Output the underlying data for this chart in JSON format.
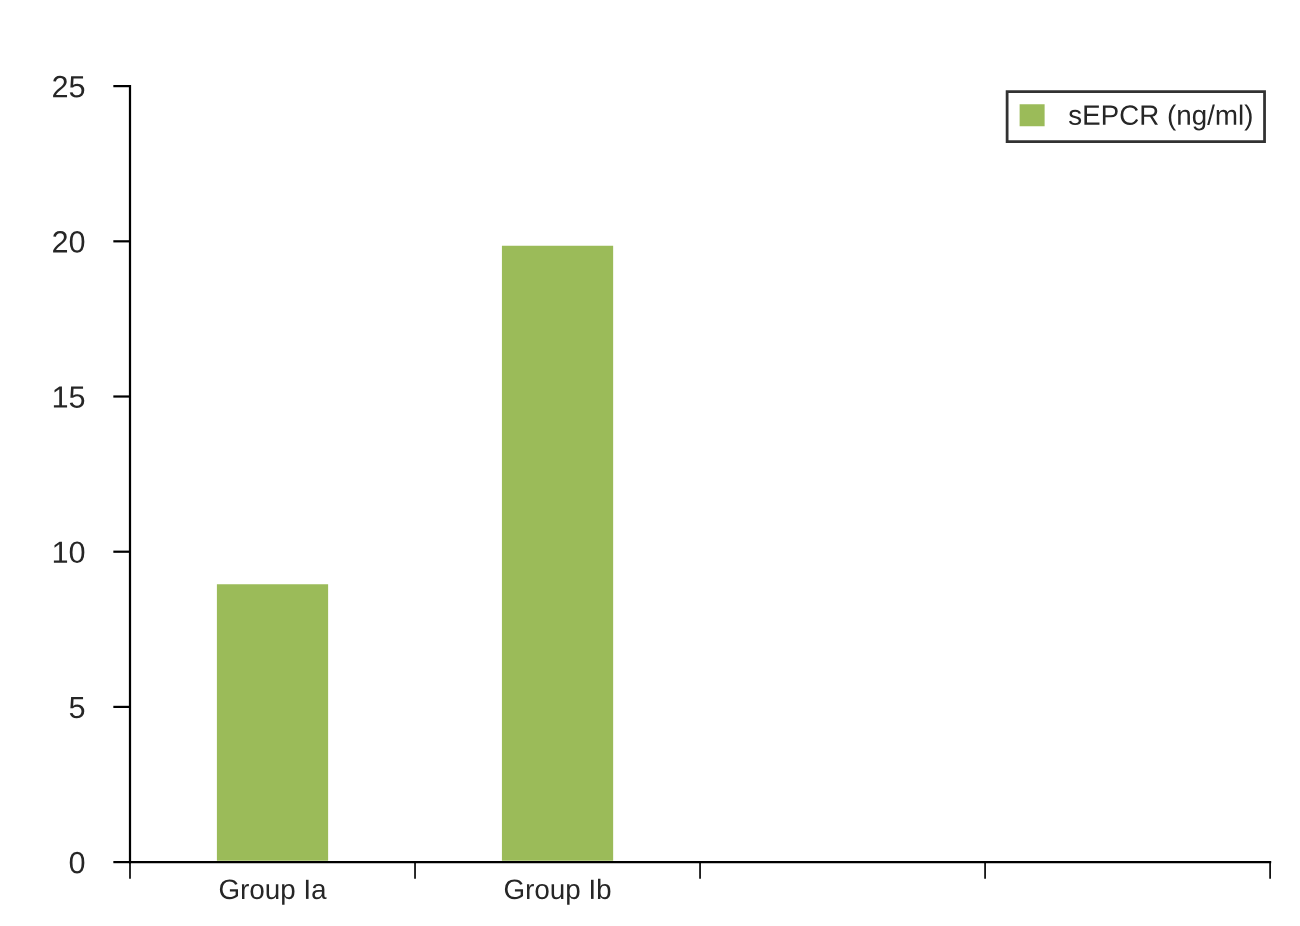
{
  "chart_data": {
    "type": "bar",
    "categories": [
      "Group Ia",
      "Group Ib",
      null,
      null
    ],
    "series": [
      {
        "name": "sEPCR (ng/ml)",
        "color": "#9bbb59",
        "values": [
          9,
          19.9,
          null,
          null
        ]
      }
    ],
    "ylim": [
      0,
      25
    ],
    "yticks": [
      0,
      5,
      10,
      15,
      20,
      25
    ],
    "grid": false,
    "legend": "top right"
  }
}
